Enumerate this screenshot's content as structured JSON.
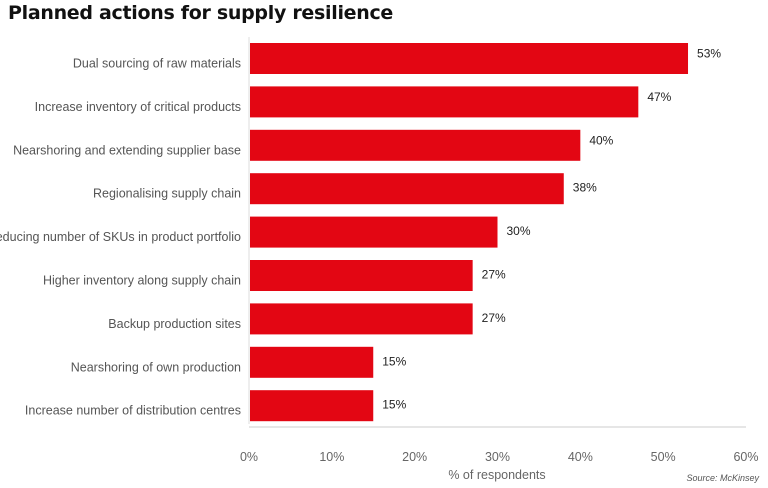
{
  "chart_data": {
    "type": "bar",
    "orientation": "horizontal",
    "title": "Planned actions for supply resilience",
    "categories": [
      "Dual sourcing of raw materials",
      "Increase inventory of critical products",
      "Nearshoring and extending supplier base",
      "Regionalising supply chain",
      "Reducing number of SKUs in product portfolio",
      "Higher inventory along supply chain",
      "Backup production sites",
      "Nearshoring of own production",
      "Increase number of distribution centres"
    ],
    "values": [
      53,
      47,
      40,
      38,
      30,
      27,
      27,
      15,
      15
    ],
    "value_labels": [
      "53%",
      "47%",
      "40%",
      "38%",
      "30%",
      "27%",
      "27%",
      "15%",
      "15%"
    ],
    "xlabel": "% of respondents",
    "ylabel": "",
    "xlim": [
      0,
      60
    ],
    "xticks": [
      0,
      10,
      20,
      30,
      40,
      50,
      60
    ],
    "xtick_labels": [
      "0%",
      "10%",
      "20%",
      "30%",
      "40%",
      "50%",
      "60%"
    ],
    "grid": false,
    "bar_color": "#e30613",
    "source": "Source: McKinsey"
  }
}
